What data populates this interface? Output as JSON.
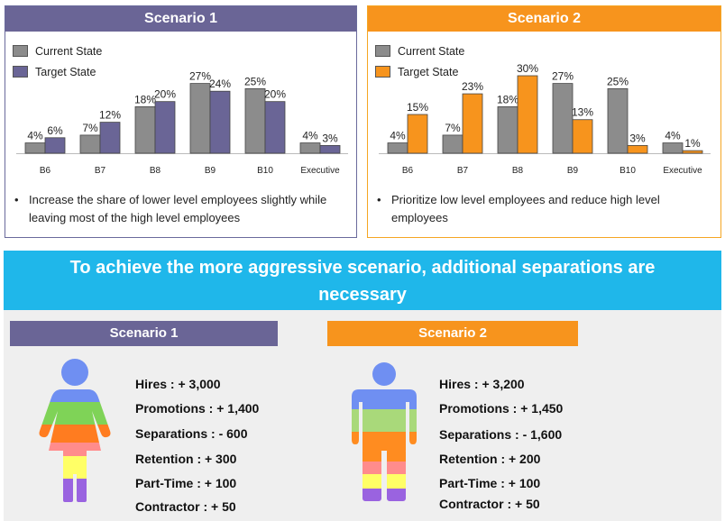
{
  "top": {
    "scenario1": {
      "title": "Scenario 1",
      "legend": [
        "Current State",
        "Target State"
      ],
      "bullet": "Increase the share of lower level employees slightly while leaving most of the high level employees"
    },
    "scenario2": {
      "title": "Scenario 2",
      "legend": [
        "Current State",
        "Target State"
      ],
      "bullet": "Prioritize low level employees and reduce high level employees"
    }
  },
  "banner": {
    "line1": "To achieve the more aggressive scenario, additional separations are",
    "line2": "necessary"
  },
  "bottom": {
    "scenario1": {
      "title": "Scenario 1",
      "items": [
        "Hires : + 3,000",
        "Promotions : + 1,400",
        "Separations : - 600",
        "Retention : + 300",
        "Part-Time : + 100",
        "Contractor : + 50"
      ]
    },
    "scenario2": {
      "title": "Scenario 2",
      "items": [
        "Hires : + 3,200",
        "Promotions : + 1,450",
        "Separations : - 1,600",
        "Retention : + 200",
        "Part-Time : + 100",
        "Contractor : + 50"
      ]
    }
  },
  "colors": {
    "current": "#8c8c8c",
    "target1": "#6a6596",
    "target2": "#f7941d"
  },
  "chart_data": [
    {
      "type": "bar",
      "title": "Scenario 1",
      "categories": [
        "B6",
        "B7",
        "B8",
        "B9",
        "B10",
        "Executive"
      ],
      "series": [
        {
          "name": "Current State",
          "values": [
            4,
            7,
            18,
            27,
            25,
            4
          ]
        },
        {
          "name": "Target State",
          "values": [
            6,
            12,
            20,
            24,
            20,
            3
          ]
        }
      ],
      "data_labels": true,
      "grid": false,
      "legend_position": "top-left"
    },
    {
      "type": "bar",
      "title": "Scenario 2",
      "categories": [
        "B6",
        "B7",
        "B8",
        "B9",
        "B10",
        "Executive"
      ],
      "series": [
        {
          "name": "Current State",
          "values": [
            4,
            7,
            18,
            27,
            25,
            4
          ]
        },
        {
          "name": "Target State",
          "values": [
            15,
            23,
            30,
            13,
            3,
            1
          ]
        }
      ],
      "data_labels": true,
      "grid": false,
      "legend_position": "top-left"
    }
  ]
}
